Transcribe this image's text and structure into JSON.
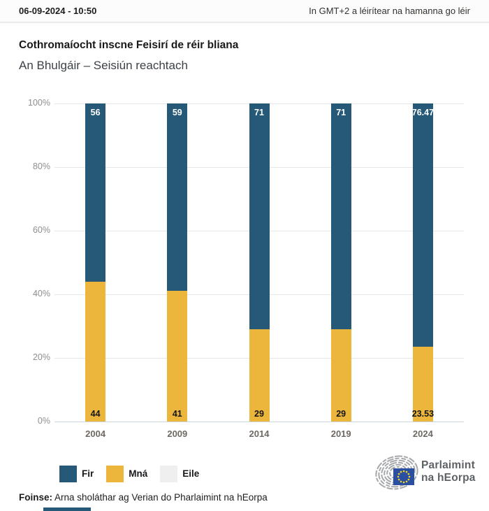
{
  "header": {
    "datetime": "06-09-2024 - 10:50",
    "timezone_note": "In GMT+2 a léirítear na hamanna go léir"
  },
  "chart_data": {
    "type": "bar",
    "stacked": true,
    "title": "Cothromaíocht inscne Feisirí de réir bliana",
    "subtitle": "An Bhulgáir – Seisiún reachtach",
    "categories": [
      "2004",
      "2009",
      "2014",
      "2019",
      "2024"
    ],
    "series": [
      {
        "name": "Fir",
        "color": "#265978",
        "values": [
          56,
          59,
          71,
          71,
          76.47
        ],
        "labels": [
          "56",
          "59",
          "71",
          "71",
          "76.47"
        ],
        "label_position": "inside-top",
        "label_color": "#ffffff"
      },
      {
        "name": "Mná",
        "color": "#ecb53b",
        "values": [
          44,
          41,
          29,
          29,
          23.53
        ],
        "labels": [
          "44",
          "41",
          "29",
          "29",
          "23.53"
        ],
        "label_position": "inside-bottom",
        "label_color": "#151515"
      },
      {
        "name": "Eile",
        "color": "#efeff0",
        "values": [
          0,
          0,
          0,
          0,
          0
        ],
        "labels": []
      }
    ],
    "ylim": [
      0,
      100
    ],
    "yticks": [
      "0%",
      "20%",
      "40%",
      "60%",
      "80%",
      "100%"
    ],
    "grid": true,
    "legend_position": "bottom-left"
  },
  "logo": {
    "line1": "Parlaimint",
    "line2": "na hEorpa"
  },
  "source": {
    "label": "Foinse:",
    "text": "Arna sholáthar ag Verian do Pharlaimint na hEorpa"
  }
}
